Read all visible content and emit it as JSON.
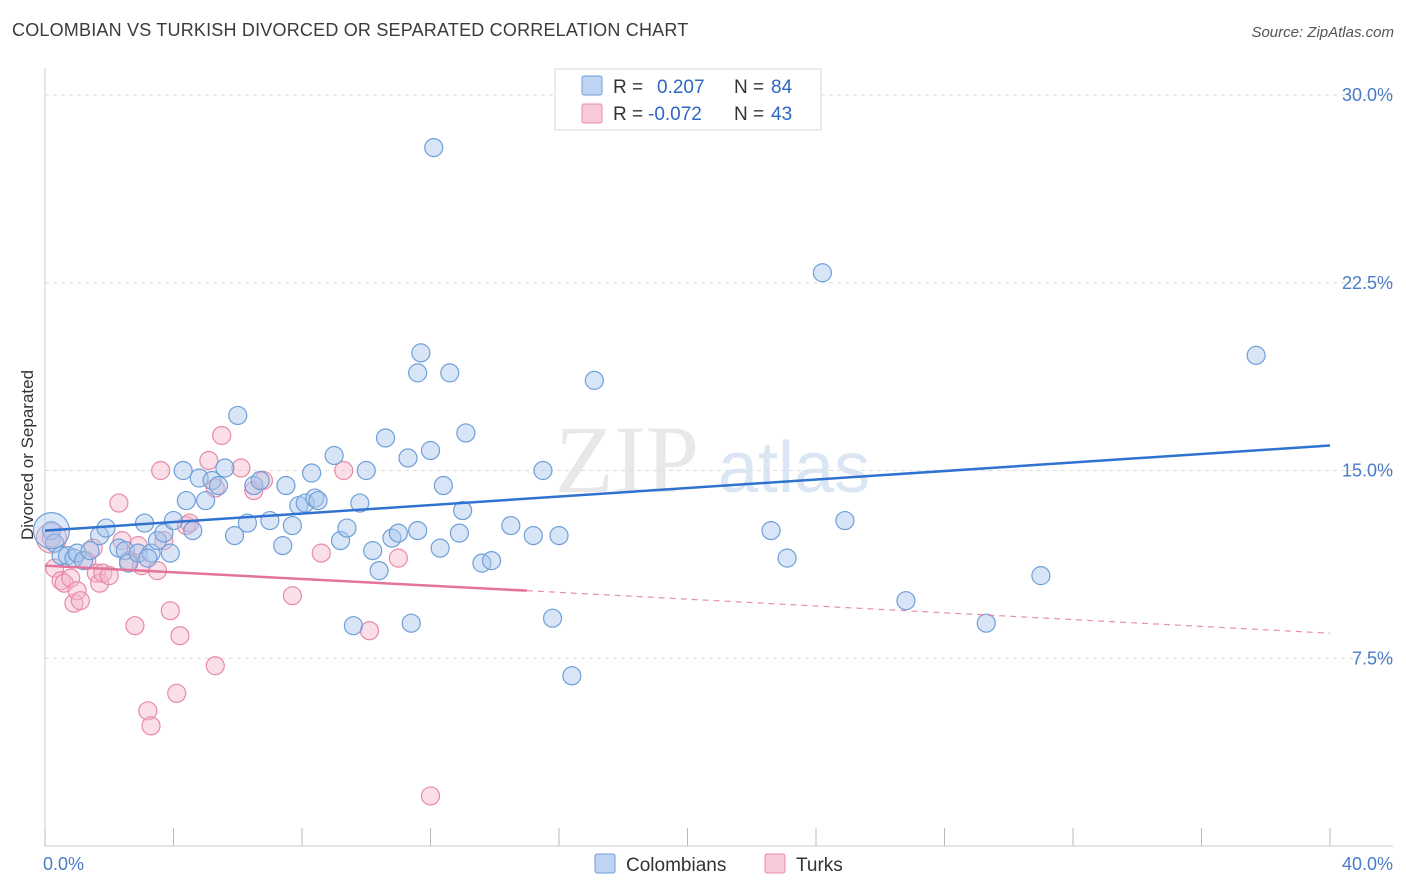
{
  "title": "COLOMBIAN VS TURKISH DIVORCED OR SEPARATED CORRELATION CHART",
  "source": "Source: ZipAtlas.com",
  "watermark": {
    "zip": "ZIP",
    "atlas": "atlas"
  },
  "colors": {
    "colombians_fill": "#a9c6ee",
    "colombians_stroke": "#6f9fd8",
    "colombians_line": "#2f72cf",
    "turks_fill": "#f5b8cc",
    "turks_stroke": "#e88aa8",
    "turks_line": "#e2739a",
    "axis_label": "#4a7bc8"
  },
  "legend": {
    "colombians": {
      "r_label": "R =",
      "r_value": "0.207",
      "n_label": "N =",
      "n_value": "84"
    },
    "turks": {
      "r_label": "R =",
      "r_value": "-0.072",
      "n_label": "N =",
      "n_value": "43"
    }
  },
  "bottom_legend": [
    "Colombians",
    "Turks"
  ],
  "chart_data": {
    "type": "scatter",
    "title": "COLOMBIAN VS TURKISH DIVORCED OR SEPARATED CORRELATION CHART",
    "xlabel": "",
    "ylabel": "Divorced or Separated",
    "xlim": [
      0,
      40
    ],
    "ylim": [
      0,
      30.6
    ],
    "x_tick_labels": [
      "0.0%",
      "40.0%"
    ],
    "y_ticks": [
      7.5,
      15.0,
      22.5,
      30.0
    ],
    "y_tick_labels": [
      "7.5%",
      "15.0%",
      "22.5%",
      "30.0%"
    ],
    "grid": "horizontal dashed",
    "legend_position": "top-center",
    "series": [
      {
        "name": "Colombians",
        "r": 0.207,
        "n": 84,
        "trend": {
          "x": [
            0,
            40
          ],
          "y": [
            12.6,
            16.0
          ],
          "style": "solid"
        },
        "points": [
          [
            0.2,
            12.6
          ],
          [
            0.3,
            12.1
          ],
          [
            0.5,
            11.6
          ],
          [
            0.7,
            11.6
          ],
          [
            0.9,
            11.5
          ],
          [
            1.0,
            11.7
          ],
          [
            1.2,
            11.4
          ],
          [
            1.4,
            11.8
          ],
          [
            1.7,
            12.4
          ],
          [
            1.9,
            12.7
          ],
          [
            2.3,
            11.9
          ],
          [
            2.5,
            11.8
          ],
          [
            2.6,
            11.3
          ],
          [
            2.9,
            11.7
          ],
          [
            3.1,
            12.9
          ],
          [
            3.3,
            11.7
          ],
          [
            3.5,
            12.2
          ],
          [
            3.7,
            12.5
          ],
          [
            3.9,
            11.7
          ],
          [
            4.0,
            13.0
          ],
          [
            4.3,
            15.0
          ],
          [
            4.4,
            13.8
          ],
          [
            4.6,
            12.6
          ],
          [
            4.8,
            14.7
          ],
          [
            5.0,
            13.8
          ],
          [
            5.2,
            14.6
          ],
          [
            5.4,
            14.4
          ],
          [
            5.6,
            15.1
          ],
          [
            5.9,
            12.4
          ],
          [
            6.0,
            17.2
          ],
          [
            6.3,
            12.9
          ],
          [
            6.5,
            14.4
          ],
          [
            6.7,
            14.6
          ],
          [
            7.0,
            13.0
          ],
          [
            7.4,
            12.0
          ],
          [
            7.5,
            14.4
          ],
          [
            7.7,
            12.8
          ],
          [
            7.9,
            13.6
          ],
          [
            8.1,
            13.7
          ],
          [
            8.3,
            14.9
          ],
          [
            8.4,
            13.9
          ],
          [
            8.5,
            13.8
          ],
          [
            9.0,
            15.6
          ],
          [
            9.2,
            12.2
          ],
          [
            9.4,
            12.7
          ],
          [
            9.6,
            8.8
          ],
          [
            9.8,
            13.7
          ],
          [
            10.0,
            15.0
          ],
          [
            10.2,
            11.8
          ],
          [
            10.4,
            11.0
          ],
          [
            10.6,
            16.3
          ],
          [
            10.8,
            12.3
          ],
          [
            11.0,
            12.5
          ],
          [
            11.3,
            15.5
          ],
          [
            11.4,
            8.9
          ],
          [
            11.6,
            18.9
          ],
          [
            11.7,
            19.7
          ],
          [
            12.0,
            15.8
          ],
          [
            12.3,
            11.9
          ],
          [
            12.4,
            14.4
          ],
          [
            12.6,
            18.9
          ],
          [
            12.9,
            12.5
          ],
          [
            13.0,
            13.4
          ],
          [
            13.1,
            16.5
          ],
          [
            13.6,
            11.3
          ],
          [
            13.9,
            11.4
          ],
          [
            14.5,
            12.8
          ],
          [
            15.2,
            12.4
          ],
          [
            15.5,
            15.0
          ],
          [
            15.8,
            9.1
          ],
          [
            16.0,
            12.4
          ],
          [
            16.4,
            6.8
          ],
          [
            17.1,
            18.6
          ],
          [
            22.6,
            12.6
          ],
          [
            23.1,
            11.5
          ],
          [
            24.2,
            22.9
          ],
          [
            24.9,
            13.0
          ],
          [
            26.8,
            9.8
          ],
          [
            29.3,
            8.9
          ],
          [
            31.0,
            10.8
          ],
          [
            37.7,
            19.6
          ],
          [
            12.1,
            27.9
          ],
          [
            11.6,
            12.6
          ],
          [
            3.2,
            11.5
          ]
        ]
      },
      {
        "name": "Turks",
        "r": -0.072,
        "n": 43,
        "trend": {
          "x": [
            0,
            15
          ],
          "y": [
            11.2,
            10.2
          ],
          "style": "solid",
          "extension": {
            "x": [
              15,
              40
            ],
            "y": [
              10.2,
              8.5
            ],
            "style": "dashed"
          }
        },
        "points": [
          [
            0.2,
            12.3
          ],
          [
            0.3,
            11.1
          ],
          [
            0.5,
            10.6
          ],
          [
            0.6,
            10.5
          ],
          [
            0.8,
            10.7
          ],
          [
            0.9,
            9.7
          ],
          [
            1.0,
            10.2
          ],
          [
            1.1,
            9.8
          ],
          [
            1.3,
            11.4
          ],
          [
            1.5,
            11.9
          ],
          [
            1.6,
            10.9
          ],
          [
            1.7,
            10.5
          ],
          [
            1.8,
            10.9
          ],
          [
            2.0,
            10.8
          ],
          [
            2.3,
            13.7
          ],
          [
            2.4,
            12.2
          ],
          [
            2.6,
            11.4
          ],
          [
            2.8,
            8.8
          ],
          [
            2.9,
            12.0
          ],
          [
            3.0,
            11.2
          ],
          [
            3.2,
            5.4
          ],
          [
            3.3,
            4.8
          ],
          [
            3.5,
            11.0
          ],
          [
            3.6,
            15.0
          ],
          [
            3.7,
            12.2
          ],
          [
            3.9,
            9.4
          ],
          [
            4.1,
            6.1
          ],
          [
            4.2,
            8.4
          ],
          [
            4.4,
            12.8
          ],
          [
            4.5,
            12.9
          ],
          [
            5.1,
            15.4
          ],
          [
            5.3,
            14.3
          ],
          [
            5.3,
            7.2
          ],
          [
            5.5,
            16.4
          ],
          [
            6.1,
            15.1
          ],
          [
            6.5,
            14.2
          ],
          [
            6.8,
            14.6
          ],
          [
            7.7,
            10.0
          ],
          [
            8.6,
            11.7
          ],
          [
            9.3,
            15.0
          ],
          [
            10.1,
            8.6
          ],
          [
            11.0,
            11.5
          ],
          [
            12.0,
            2.0
          ]
        ]
      }
    ]
  }
}
